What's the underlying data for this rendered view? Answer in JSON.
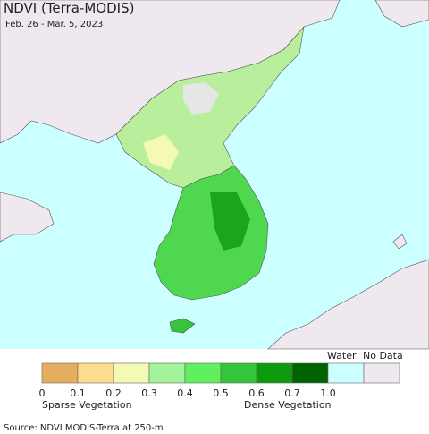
{
  "header": {
    "title": "NDVI (Terra-MODIS)",
    "date": "Feb. 26 - Mar. 5, 2023"
  },
  "legend": {
    "classes": [
      {
        "color": "#e5ad60"
      },
      {
        "color": "#fddc8d"
      },
      {
        "color": "#f4f9b3"
      },
      {
        "color": "#a2f39a"
      },
      {
        "color": "#5fef5f"
      },
      {
        "color": "#35c43a"
      },
      {
        "color": "#0d9a0d"
      },
      {
        "color": "#006300"
      },
      {
        "color": "#ccffff"
      },
      {
        "color": "#efe8ef"
      }
    ],
    "ticks": [
      "0",
      "0.1",
      "0.2",
      "0.3",
      "0.4",
      "0.5",
      "0.6",
      "0.7",
      "1.0"
    ],
    "water_label": "Water",
    "nodata_label": "No Data",
    "sparse_label": "Sparse Vegetation",
    "dense_label": "Dense Vegetation"
  },
  "footer": {
    "source": "Source: NDVI MODIS-Terra at 250-m"
  }
}
